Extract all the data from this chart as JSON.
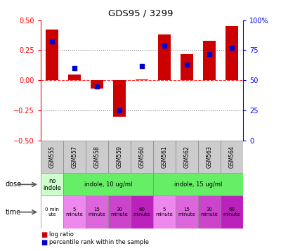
{
  "title": "GDS95 / 3299",
  "samples": [
    "GSM555",
    "GSM557",
    "GSM558",
    "GSM559",
    "GSM560",
    "GSM561",
    "GSM562",
    "GSM563",
    "GSM564"
  ],
  "log_ratio": [
    0.42,
    0.05,
    -0.07,
    -0.3,
    0.01,
    0.38,
    0.22,
    0.33,
    0.45
  ],
  "percentile_rank": [
    82,
    60,
    45,
    25,
    62,
    79,
    63,
    72,
    77
  ],
  "bar_color": "#cc0000",
  "dot_color": "#0000cc",
  "ylim": [
    -0.5,
    0.5
  ],
  "y2lim": [
    0,
    100
  ],
  "yticks": [
    -0.5,
    -0.25,
    0.0,
    0.25,
    0.5
  ],
  "y2ticks": [
    0,
    25,
    50,
    75,
    100
  ],
  "hline_y": [
    0.25,
    0.0,
    -0.25
  ],
  "dose_spans": [
    [
      0,
      1,
      "no\nindole",
      "#ccffcc"
    ],
    [
      1,
      5,
      "indole, 10 ug/ml",
      "#66ee66"
    ],
    [
      5,
      9,
      "indole, 15 ug/ml",
      "#66ee66"
    ]
  ],
  "time_data": [
    [
      0,
      1,
      "0 min\nute",
      "#ffffff"
    ],
    [
      1,
      2,
      "5\nminute",
      "#ee88ee"
    ],
    [
      2,
      3,
      "15\nminute",
      "#dd66dd"
    ],
    [
      3,
      4,
      "30\nminute",
      "#cc44cc"
    ],
    [
      4,
      5,
      "60\nminute",
      "#bb22bb"
    ],
    [
      5,
      6,
      "5\nminute",
      "#ee88ee"
    ],
    [
      6,
      7,
      "15\nminute",
      "#dd66dd"
    ],
    [
      7,
      8,
      "30\nminute",
      "#cc44cc"
    ],
    [
      8,
      9,
      "60\nminute",
      "#bb22bb"
    ]
  ],
  "legend_items": [
    "log ratio",
    "percentile rank within the sample"
  ],
  "legend_colors": [
    "#cc0000",
    "#0000cc"
  ],
  "sample_bg": "#cccccc"
}
